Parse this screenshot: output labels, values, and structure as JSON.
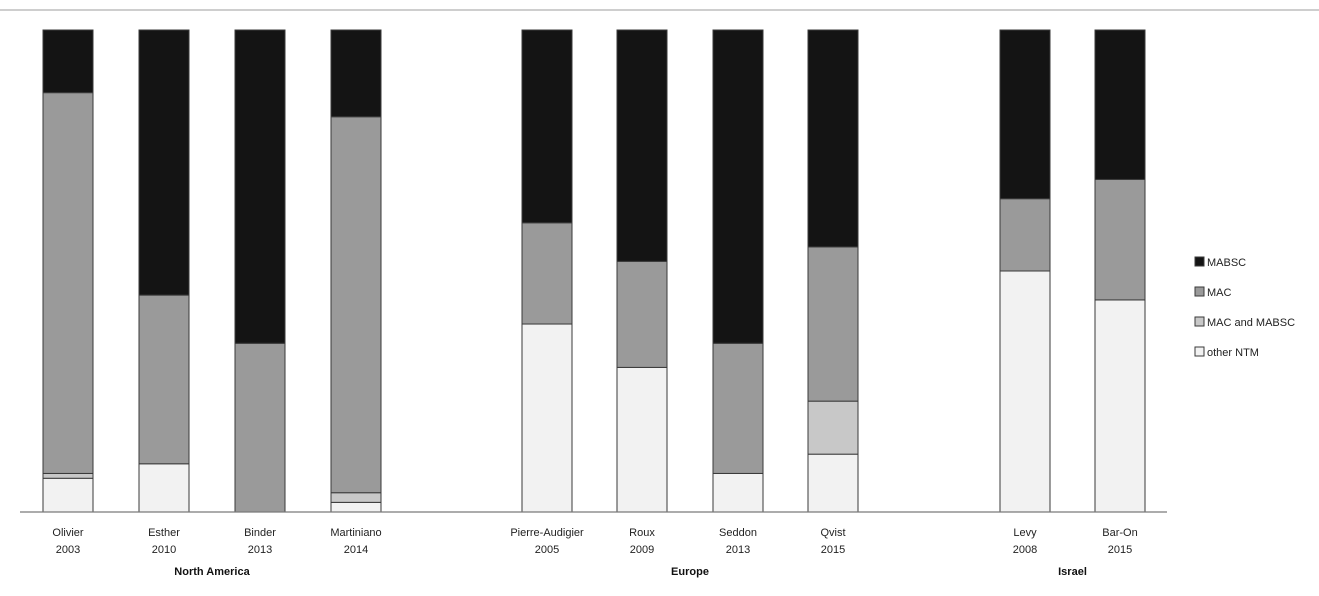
{
  "chart_data": {
    "type": "bar",
    "stacked": true,
    "normalized": true,
    "ylim": [
      0,
      100
    ],
    "grid": false,
    "legend_placement": "right",
    "title": "",
    "xlabel": "",
    "ylabel": "",
    "categories": [
      {
        "name": "Olivier",
        "year": "2003",
        "group": "North America"
      },
      {
        "name": "Esther",
        "year": "2010",
        "group": "North America"
      },
      {
        "name": "Binder",
        "year": "2013",
        "group": "North America"
      },
      {
        "name": "Martiniano",
        "year": "2014",
        "group": "North America"
      },
      {
        "name": "Pierre-Audigier",
        "year": "2005",
        "group": "Europe"
      },
      {
        "name": "Roux",
        "year": "2009",
        "group": "Europe"
      },
      {
        "name": "Seddon",
        "year": "2013",
        "group": "Europe"
      },
      {
        "name": "Qvist",
        "year": "2015",
        "group": "Europe"
      },
      {
        "name": "Levy",
        "year": "2008",
        "group": "Israel"
      },
      {
        "name": "Bar-On",
        "year": "2015",
        "group": "Israel"
      }
    ],
    "groups": [
      "North America",
      "Europe",
      "Israel"
    ],
    "series": [
      {
        "name": "other NTM",
        "color": "#f2f2f2",
        "values": [
          7,
          10,
          0,
          2,
          39,
          30,
          8,
          12,
          50,
          44
        ]
      },
      {
        "name": "MAC and MABSC",
        "color": "#c8c8c8",
        "values": [
          1,
          0,
          0,
          2,
          0,
          0,
          0,
          11,
          0,
          0
        ]
      },
      {
        "name": "MAC",
        "color": "#9a9a9a",
        "values": [
          79,
          35,
          35,
          78,
          21,
          22,
          27,
          32,
          15,
          25
        ]
      },
      {
        "name": "MABSC",
        "color": "#141414",
        "values": [
          13,
          55,
          65,
          18,
          40,
          48,
          65,
          45,
          35,
          31
        ]
      }
    ],
    "legend_order": [
      "MABSC",
      "MAC",
      "MAC and MABSC",
      "other NTM"
    ]
  }
}
